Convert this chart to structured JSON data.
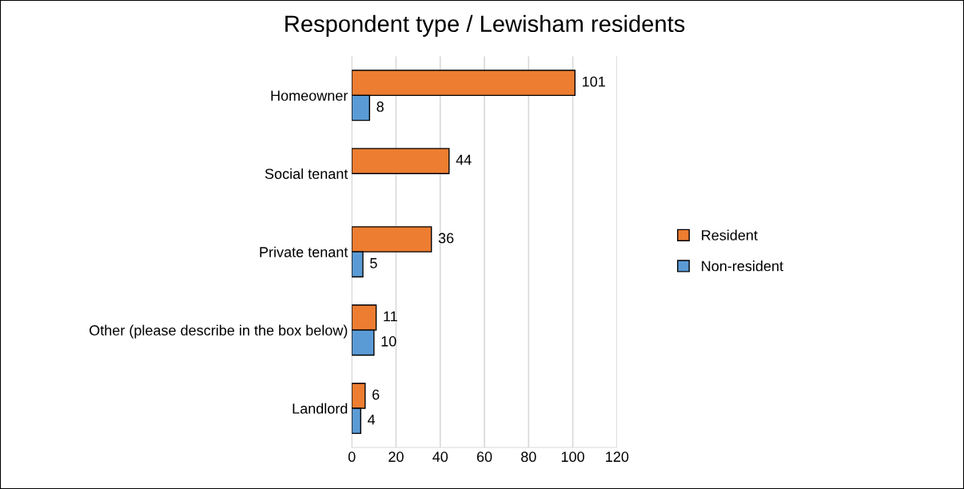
{
  "chart_data": {
    "type": "bar",
    "orientation": "horizontal",
    "title": "Respondent type / Lewisham residents",
    "categories": [
      "Homeowner",
      "Social tenant",
      "Private tenant",
      "Other (please describe in the box below)",
      "Landlord"
    ],
    "series": [
      {
        "name": "Resident",
        "color": "#ed7d31",
        "values": [
          101,
          44,
          36,
          11,
          6
        ]
      },
      {
        "name": "Non-resident",
        "color": "#5b9bd5",
        "values": [
          8,
          null,
          5,
          10,
          4
        ]
      }
    ],
    "xlim": [
      0,
      120
    ],
    "xticks": [
      0,
      20,
      40,
      60,
      80,
      100,
      120
    ],
    "grid": "x",
    "legend": "right",
    "data_labels": true
  }
}
